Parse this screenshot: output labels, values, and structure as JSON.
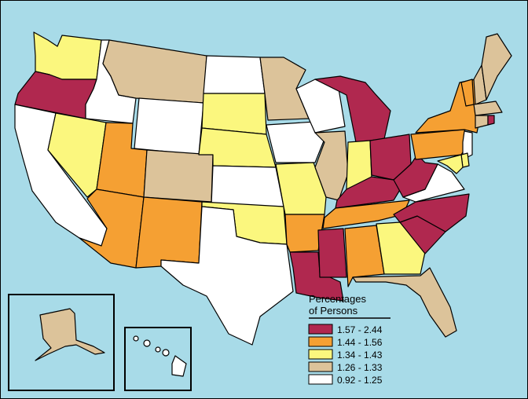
{
  "colors": {
    "water": "#a8dbe8",
    "c1": "#b0284f",
    "c2": "#f5a033",
    "c3": "#fbf77e",
    "c4": "#dcc39a",
    "c5": "#ffffff"
  },
  "legend": {
    "title_line1": "Percentages",
    "title_line2": "of Persons",
    "items": [
      {
        "label": "1.57 - 2.44",
        "class": "c1"
      },
      {
        "label": "1.44 - 1.56",
        "class": "c2"
      },
      {
        "label": "1.34 - 1.43",
        "class": "c3"
      },
      {
        "label": "1.26 - 1.33",
        "class": "c4"
      },
      {
        "label": "0.92 - 1.25",
        "class": "c5"
      }
    ]
  },
  "states": {
    "WA": "c3",
    "OR": "c1",
    "CA": "c5",
    "ID": "c5",
    "NV": "c3",
    "MT": "c4",
    "WY": "c5",
    "UT": "c2",
    "AZ": "c2",
    "CO": "c4",
    "NM": "c2",
    "ND": "c5",
    "SD": "c3",
    "NE": "c3",
    "KS": "c5",
    "OK": "c3",
    "TX": "c5",
    "MN": "c4",
    "IA": "c5",
    "MO": "c3",
    "AR": "c2",
    "LA": "c1",
    "WI": "c5",
    "IL": "c4",
    "MI": "c1",
    "IN": "c3",
    "OH": "c1",
    "KY": "c1",
    "TN": "c2",
    "MS": "c1",
    "AL": "c2",
    "GA": "c3",
    "FL": "c4",
    "SC": "c1",
    "NC": "c1",
    "VA": "c5",
    "WV": "c1",
    "PA": "c2",
    "NY": "c2",
    "VT": "c2",
    "NH": "c4",
    "ME": "c4",
    "MA": "c4",
    "CT": "c4",
    "RI": "c1",
    "NJ": "c5",
    "DE": "c3",
    "MD": "c3",
    "AK": "c4",
    "HI": "c5"
  }
}
